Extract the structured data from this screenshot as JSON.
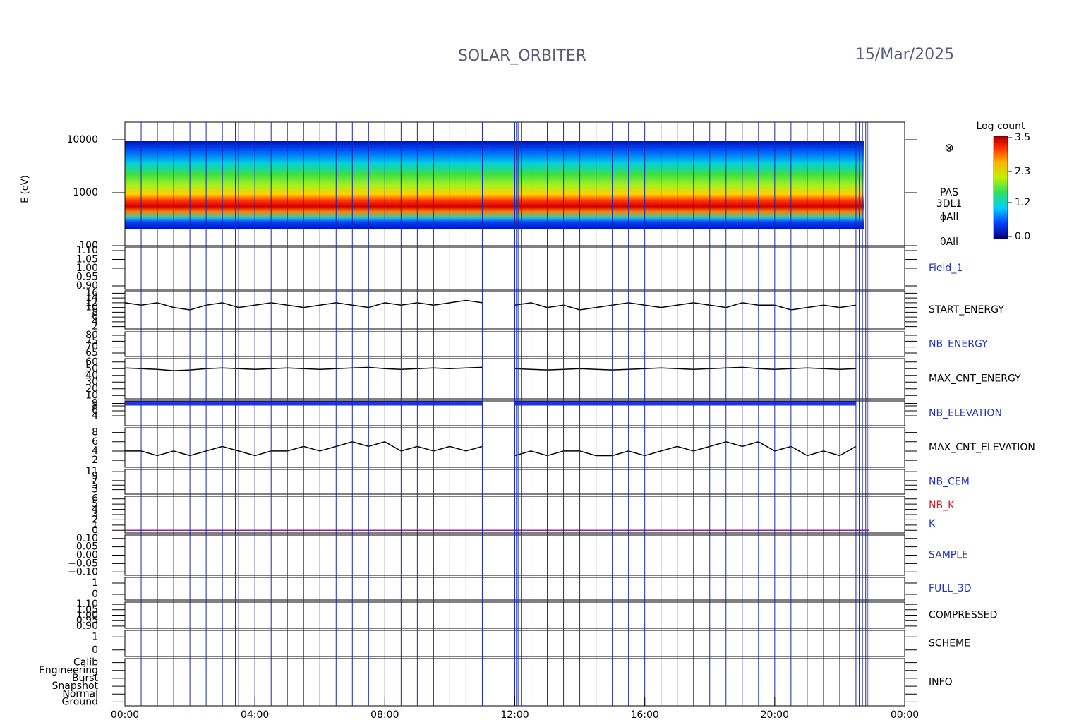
{
  "header": {
    "title": "SOLAR_ORBITER",
    "date": "15/Mar/2025"
  },
  "time_axis": {
    "xlim": [
      0,
      24
    ],
    "xticks": [
      {
        "value": 0,
        "label": "00:00"
      },
      {
        "value": 4,
        "label": "04:00"
      },
      {
        "value": 8,
        "label": "08:00"
      },
      {
        "value": 12,
        "label": "12:00"
      },
      {
        "value": 16,
        "label": "16:00"
      },
      {
        "value": 20,
        "label": "20:00"
      },
      {
        "value": 24,
        "label": "00:00"
      }
    ]
  },
  "markers": [
    0.5,
    1,
    1.5,
    2,
    2.5,
    3,
    3.4,
    3.5,
    4,
    4.5,
    5,
    5.5,
    6,
    6.5,
    7,
    7.5,
    8,
    8.5,
    9,
    9.5,
    10,
    10.5,
    11,
    12,
    12.05,
    12.1,
    12.2,
    12.5,
    13,
    13.5,
    14,
    14.5,
    15,
    15.5,
    16,
    16.5,
    17,
    17.5,
    18,
    18.5,
    19,
    19.5,
    20,
    20.5,
    21,
    21.5,
    22,
    22.5,
    22.6,
    22.7,
    22.8,
    22.85,
    22.9
  ],
  "x": [
    0,
    0.5,
    1,
    1.5,
    2,
    2.5,
    3,
    3.5,
    4,
    4.5,
    5,
    5.5,
    6,
    6.5,
    7,
    7.5,
    8,
    8.5,
    9,
    9.5,
    10,
    10.5,
    11,
    11.5,
    12,
    12.5,
    13,
    13.5,
    14,
    14.5,
    15,
    15.5,
    16,
    16.5,
    17,
    17.5,
    18,
    18.5,
    19,
    19.5,
    20,
    20.5,
    21,
    21.5,
    22,
    22.5
  ],
  "spectrogram": {
    "ylabel": "E (eV)",
    "log": true,
    "ylim": [
      100,
      21544
    ],
    "yticks": [
      10000,
      1000,
      100
    ],
    "labels": [
      "PAS",
      "3DL1",
      "ϕAll",
      "θAll"
    ],
    "colorbar": {
      "title": "Log count",
      "clim": [
        0,
        3.5
      ],
      "ticks": [
        3.5,
        2.3,
        1.2,
        {
          "value": 0,
          "label": "0.0"
        }
      ]
    }
  },
  "panels": [
    {
      "labels": [
        {
          "text": "Field_1",
          "color": "#2233bb"
        }
      ],
      "ylim": [
        0.88,
        1.12
      ],
      "yticks": [
        {
          "value": 1.1,
          "label": "1.10"
        },
        1.05,
        {
          "value": 1,
          "label": "1.00"
        },
        0.95,
        {
          "value": 0.9,
          "label": "0.90"
        }
      ]
    },
    {
      "labels": [
        {
          "text": "START_ENERGY",
          "color": "#000000"
        }
      ],
      "ylim": [
        1,
        17
      ],
      "yticks": [
        16,
        14,
        12,
        10,
        8,
        6,
        4,
        2
      ],
      "color": "#000000",
      "values": [
        12,
        11,
        12,
        10,
        9,
        11,
        12,
        10,
        11,
        12,
        11,
        10,
        11,
        12,
        11,
        10,
        12,
        11,
        12,
        11,
        12,
        13,
        12,
        null,
        11,
        12,
        10,
        11,
        9,
        10,
        11,
        12,
        11,
        10,
        11,
        12,
        11,
        10,
        12,
        11,
        11,
        9,
        10,
        11,
        10,
        11
      ]
    },
    {
      "labels": [
        {
          "text": "NB_ENERGY",
          "color": "#2233bb"
        }
      ],
      "ylim": [
        62,
        83
      ],
      "yticks": [
        80,
        75,
        70,
        65
      ]
    },
    {
      "labels": [
        {
          "text": "MAX_CNT_ENERGY",
          "color": "#000000"
        }
      ],
      "ylim": [
        5,
        65
      ],
      "yticks": [
        60,
        50,
        40,
        30,
        20,
        10
      ],
      "color": "#000000",
      "values": [
        51,
        50,
        49,
        47,
        48,
        50,
        51,
        50,
        49,
        50,
        51,
        50,
        49,
        50,
        51,
        52,
        50,
        49,
        50,
        51,
        50,
        51,
        52,
        null,
        50,
        49,
        48,
        49,
        50,
        49,
        48,
        49,
        50,
        51,
        50,
        49,
        50,
        51,
        52,
        50,
        49,
        50,
        51,
        50,
        49,
        50
      ]
    },
    {
      "labels": [
        {
          "text": "NB_ELEVATION",
          "color": "#2233bb"
        }
      ],
      "ylim": [
        0,
        10
      ],
      "yticks": [
        9,
        8,
        6,
        4
      ],
      "color": "#2233ee",
      "width": 6,
      "values": [
        9,
        9,
        9,
        9,
        9,
        9,
        9,
        9,
        9,
        9,
        9,
        9,
        9,
        9,
        9,
        9,
        9,
        9,
        9,
        9,
        9,
        9,
        9,
        null,
        9,
        9,
        9,
        9,
        9,
        9,
        9,
        9,
        9,
        9,
        9,
        9,
        9,
        9,
        9,
        9,
        9,
        9,
        9,
        9,
        9,
        9
      ]
    },
    {
      "labels": [
        {
          "text": "MAX_CNT_ELEVATION",
          "color": "#000000"
        }
      ],
      "ylim": [
        0.5,
        9
      ],
      "yticks": [
        8,
        6,
        4,
        2
      ],
      "color": "#000000",
      "values": [
        4,
        4,
        3,
        4,
        3,
        4,
        5,
        4,
        3,
        4,
        4,
        5,
        4,
        5,
        6,
        5,
        6,
        4,
        5,
        4,
        5,
        4,
        5,
        null,
        3,
        4,
        3,
        4,
        4,
        3,
        3,
        4,
        3,
        4,
        5,
        4,
        5,
        6,
        5,
        6,
        4,
        5,
        3,
        4,
        3,
        5
      ]
    },
    {
      "labels": [
        {
          "text": "NB_CEM",
          "color": "#2233bb"
        }
      ],
      "ylim": [
        1,
        12
      ],
      "yticks": [
        11,
        9,
        7,
        5,
        3
      ]
    },
    {
      "labels": [
        {
          "text": "NB_K",
          "color": "#cc2222"
        },
        {
          "text": "K",
          "color": "#2233bb"
        }
      ],
      "ylim": [
        -0.5,
        6.5
      ],
      "yticks": [
        6,
        5,
        4,
        3,
        2,
        1,
        0
      ],
      "color": "#8a2a8a",
      "x": [
        0,
        22.9
      ],
      "values": [
        0,
        0
      ]
    },
    {
      "labels": [
        {
          "text": "SAMPLE",
          "color": "#2233bb"
        }
      ],
      "ylim": [
        -0.12,
        0.12
      ],
      "yticks": [
        {
          "value": 0.1,
          "label": "0.10"
        },
        0.05,
        {
          "value": 0,
          "label": "0.00"
        },
        {
          "value": -0.05,
          "label": "−0.05"
        },
        {
          "value": -0.1,
          "label": "−0.10"
        }
      ]
    },
    {
      "labels": [
        {
          "text": "FULL_3D",
          "color": "#2233bb"
        }
      ],
      "ylim": [
        -0.5,
        1.5
      ],
      "yticks": [
        1,
        0
      ]
    },
    {
      "labels": [
        {
          "text": "COMPRESSED",
          "color": "#000000"
        }
      ],
      "ylim": [
        0.88,
        1.12
      ],
      "yticks": [
        {
          "value": 1.1,
          "label": "1.10"
        },
        1.05,
        {
          "value": 1,
          "label": "1.00"
        },
        0.95,
        {
          "value": 0.9,
          "label": "0.90"
        }
      ]
    },
    {
      "labels": [
        {
          "text": "SCHEME",
          "color": "#000000"
        }
      ],
      "ylim": [
        -0.5,
        1.5
      ],
      "yticks": [
        1,
        0
      ]
    },
    {
      "labels": [
        {
          "text": "INFO",
          "color": "#000000"
        }
      ],
      "ylim": [
        -0.5,
        5.5
      ],
      "yticks": [
        {
          "value": 5,
          "label": "Calib"
        },
        {
          "value": 4,
          "label": "Engineering"
        },
        {
          "value": 3,
          "label": "Burst"
        },
        {
          "value": 2,
          "label": "Snapshot"
        },
        {
          "value": 1,
          "label": "Normal"
        },
        {
          "value": 0,
          "label": "Ground"
        }
      ]
    }
  ]
}
